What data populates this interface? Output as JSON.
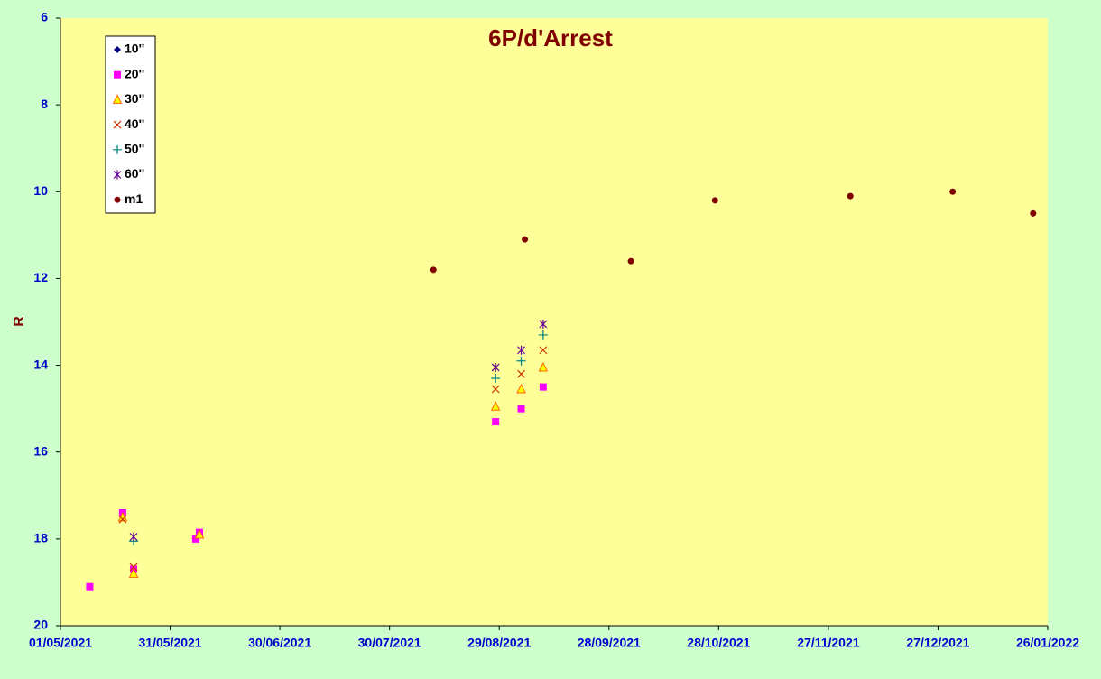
{
  "chart_data": {
    "type": "scatter",
    "title": "6P/d'Arrest",
    "y_label": "R",
    "xlim": [
      "2021-05-01",
      "2022-01-26"
    ],
    "xticks": [
      {
        "value": "2021-05-01",
        "label": "01/05/2021"
      },
      {
        "value": "2021-05-31",
        "label": "31/05/2021"
      },
      {
        "value": "2021-06-30",
        "label": "30/06/2021"
      },
      {
        "value": "2021-07-30",
        "label": "30/07/2021"
      },
      {
        "value": "2021-08-29",
        "label": "29/08/2021"
      },
      {
        "value": "2021-09-28",
        "label": "28/09/2021"
      },
      {
        "value": "2021-10-28",
        "label": "28/10/2021"
      },
      {
        "value": "2021-11-27",
        "label": "27/11/2021"
      },
      {
        "value": "2021-12-27",
        "label": "27/12/2021"
      },
      {
        "value": "2022-01-26",
        "label": "26/01/2022"
      }
    ],
    "ylim": [
      20,
      6
    ],
    "yticks": [
      6,
      8,
      10,
      12,
      14,
      16,
      18,
      20
    ],
    "series": [
      {
        "name": "10''",
        "color": "#000080",
        "marker": "diamond",
        "x": [],
        "values": []
      },
      {
        "name": "20''",
        "color": "#ff00ff",
        "marker": "square",
        "x": [
          "2021-05-09",
          "2021-05-18",
          "2021-05-21",
          "2021-06-07",
          "2021-06-08",
          "2021-08-28",
          "2021-09-04",
          "2021-09-10"
        ],
        "values": [
          19.1,
          17.4,
          18.7,
          18.0,
          17.85,
          15.3,
          15.0,
          14.5
        ]
      },
      {
        "name": "30''",
        "color": "#ff6600",
        "marker": "triangle",
        "x": [
          "2021-05-18",
          "2021-05-21",
          "2021-06-08",
          "2021-08-28",
          "2021-09-04",
          "2021-09-10"
        ],
        "values": [
          17.5,
          18.8,
          17.9,
          14.95,
          14.55,
          14.05
        ]
      },
      {
        "name": "40''",
        "color": "#cc3300",
        "marker": "x",
        "x": [
          "2021-05-18",
          "2021-05-21",
          "2021-08-28",
          "2021-09-04",
          "2021-09-10"
        ],
        "values": [
          17.55,
          18.65,
          14.55,
          14.2,
          13.65
        ]
      },
      {
        "name": "50''",
        "color": "#008080",
        "marker": "plus",
        "x": [
          "2021-05-21",
          "2021-08-28",
          "2021-09-04",
          "2021-09-10"
        ],
        "values": [
          18.05,
          14.3,
          13.9,
          13.3
        ]
      },
      {
        "name": "60''",
        "color": "#660099",
        "marker": "star",
        "x": [
          "2021-05-21",
          "2021-08-28",
          "2021-09-04",
          "2021-09-10"
        ],
        "values": [
          17.95,
          14.05,
          13.65,
          13.05
        ]
      },
      {
        "name": "m1",
        "color": "#800000",
        "marker": "circle",
        "x": [
          "2021-08-11",
          "2021-09-05",
          "2021-10-04",
          "2021-10-27",
          "2021-12-03",
          "2021-12-31",
          "2022-01-22"
        ],
        "values": [
          11.8,
          11.1,
          11.6,
          10.2,
          10.1,
          10.0,
          10.5
        ]
      }
    ]
  }
}
